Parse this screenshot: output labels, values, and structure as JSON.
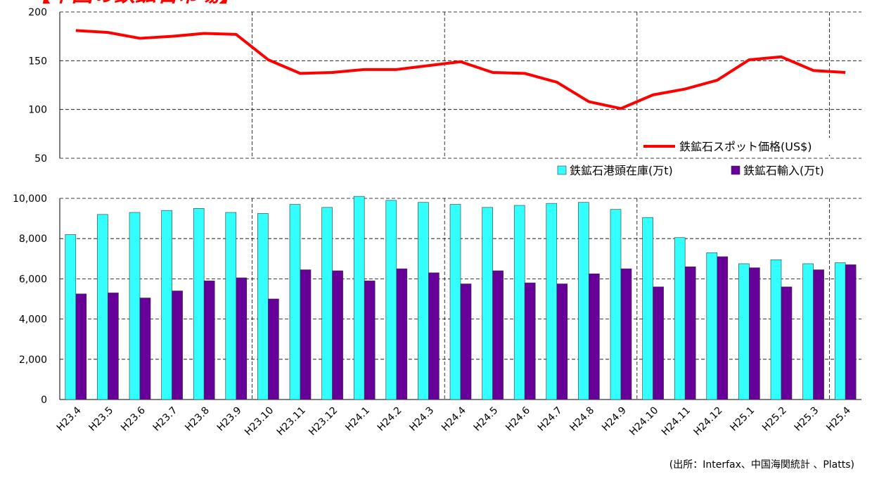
{
  "chart_data": [
    {
      "type": "line",
      "title": "【中国の鉄鉱石市場】",
      "series": [
        {
          "name": "鉄鉱石スポット価格(US$)",
          "color": "#ff0000",
          "values": [
            181,
            179,
            173,
            175,
            178,
            177,
            151,
            137,
            138,
            141,
            141,
            145,
            149,
            138,
            137,
            128,
            108,
            101,
            115,
            121,
            130,
            151,
            154,
            140,
            138
          ]
        }
      ],
      "ylim": [
        50,
        200
      ],
      "yticks": [
        50,
        100,
        150,
        200
      ],
      "grid": true
    },
    {
      "type": "bar",
      "categories": [
        "H23.4",
        "H23.5",
        "H23.6",
        "H23.7",
        "H23.8",
        "H23.9",
        "H23.10",
        "H23.11",
        "H23.12",
        "H24.1",
        "H24.2",
        "H24.3",
        "H24.4",
        "H24.5",
        "H24.6",
        "H24.7",
        "H24.8",
        "H24.9",
        "H24.10",
        "H24.11",
        "H24.12",
        "H25.1",
        "H25.2",
        "H25.3",
        "H25.4"
      ],
      "series": [
        {
          "name": "鉄鉱石港頭在庫(万t)",
          "color": "#33ffff",
          "values": [
            8200,
            9200,
            9300,
            9400,
            9500,
            9300,
            9250,
            9700,
            9550,
            10100,
            9900,
            9800,
            9700,
            9550,
            9650,
            9750,
            9800,
            9450,
            9050,
            8050,
            7300,
            6750,
            6950,
            6750,
            6800
          ]
        },
        {
          "name": "鉄鉱石輸入(万t)",
          "color": "#660099",
          "values": [
            5250,
            5300,
            5050,
            5400,
            5900,
            6050,
            5000,
            6450,
            6400,
            5900,
            6500,
            6300,
            5750,
            6400,
            5800,
            5750,
            6250,
            6500,
            5600,
            6600,
            7100,
            6550,
            5600,
            6450,
            6700
          ]
        }
      ],
      "ylim": [
        0,
        10000
      ],
      "yticks": [
        0,
        {
          "value": 2000,
          "label": "2,000"
        },
        {
          "value": 4000,
          "label": "4,000"
        },
        {
          "value": 6000,
          "label": "6,000"
        },
        {
          "value": 8000,
          "label": "8,000"
        },
        {
          "value": 10000,
          "label": "10,000"
        }
      ],
      "grid": true,
      "note": "(出所：Interfax、中国海関統計 、Platts)"
    }
  ]
}
